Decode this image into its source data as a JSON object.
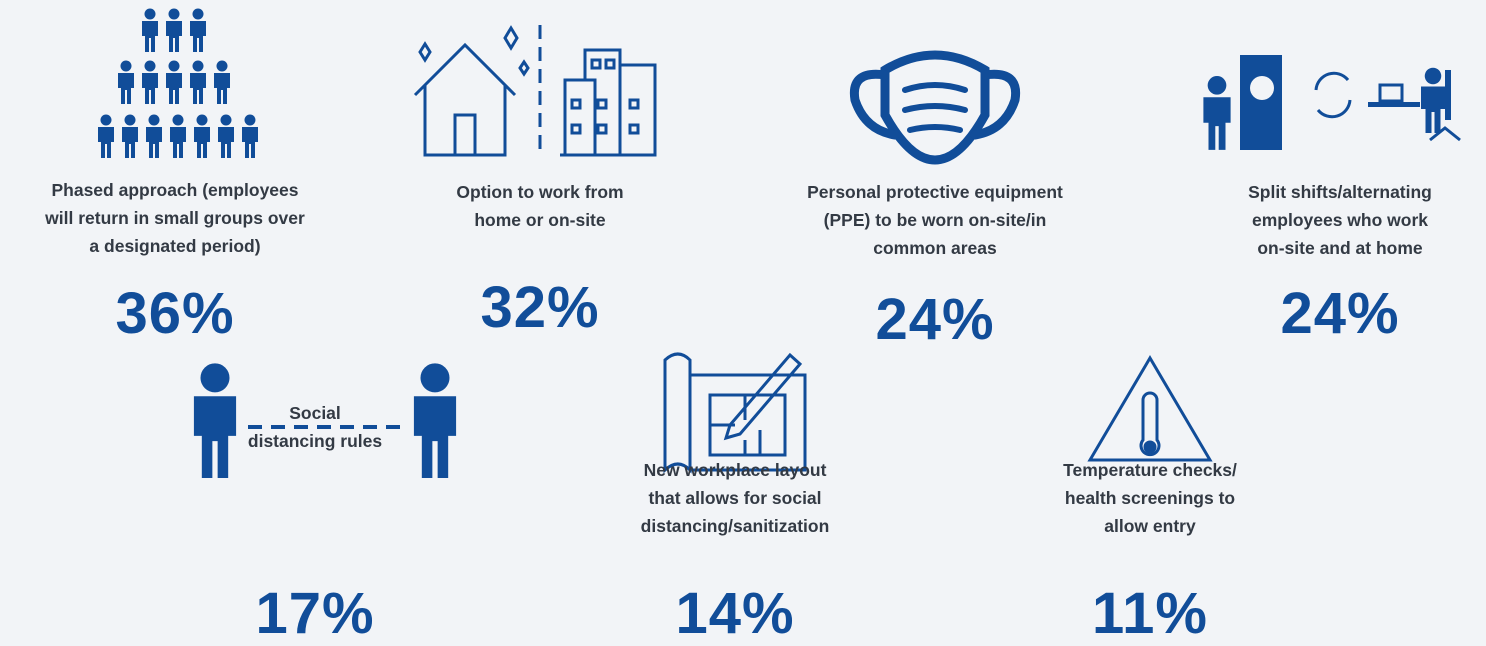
{
  "items": [
    {
      "label": [
        "Phased approach (employees",
        "will return in small groups over",
        "a designated period)"
      ],
      "percent": "36%"
    },
    {
      "label": [
        "Option to work from",
        "home or on-site"
      ],
      "percent": "32%"
    },
    {
      "label": [
        "Personal protective equipment",
        "(PPE) to be worn on-site/in",
        "common areas"
      ],
      "percent": "24%"
    },
    {
      "label": [
        "Split shifts/alternating",
        "employees who work",
        "on-site and at home"
      ],
      "percent": "24%"
    },
    {
      "label": [
        "Social",
        "distancing rules"
      ],
      "percent": "17%"
    },
    {
      "label": [
        "New workplace layout",
        "that allows for social",
        "distancing/sanitization"
      ],
      "percent": "14%"
    },
    {
      "label": [
        "Temperature checks/",
        "health screenings to",
        "allow entry"
      ],
      "percent": "11%"
    }
  ]
}
